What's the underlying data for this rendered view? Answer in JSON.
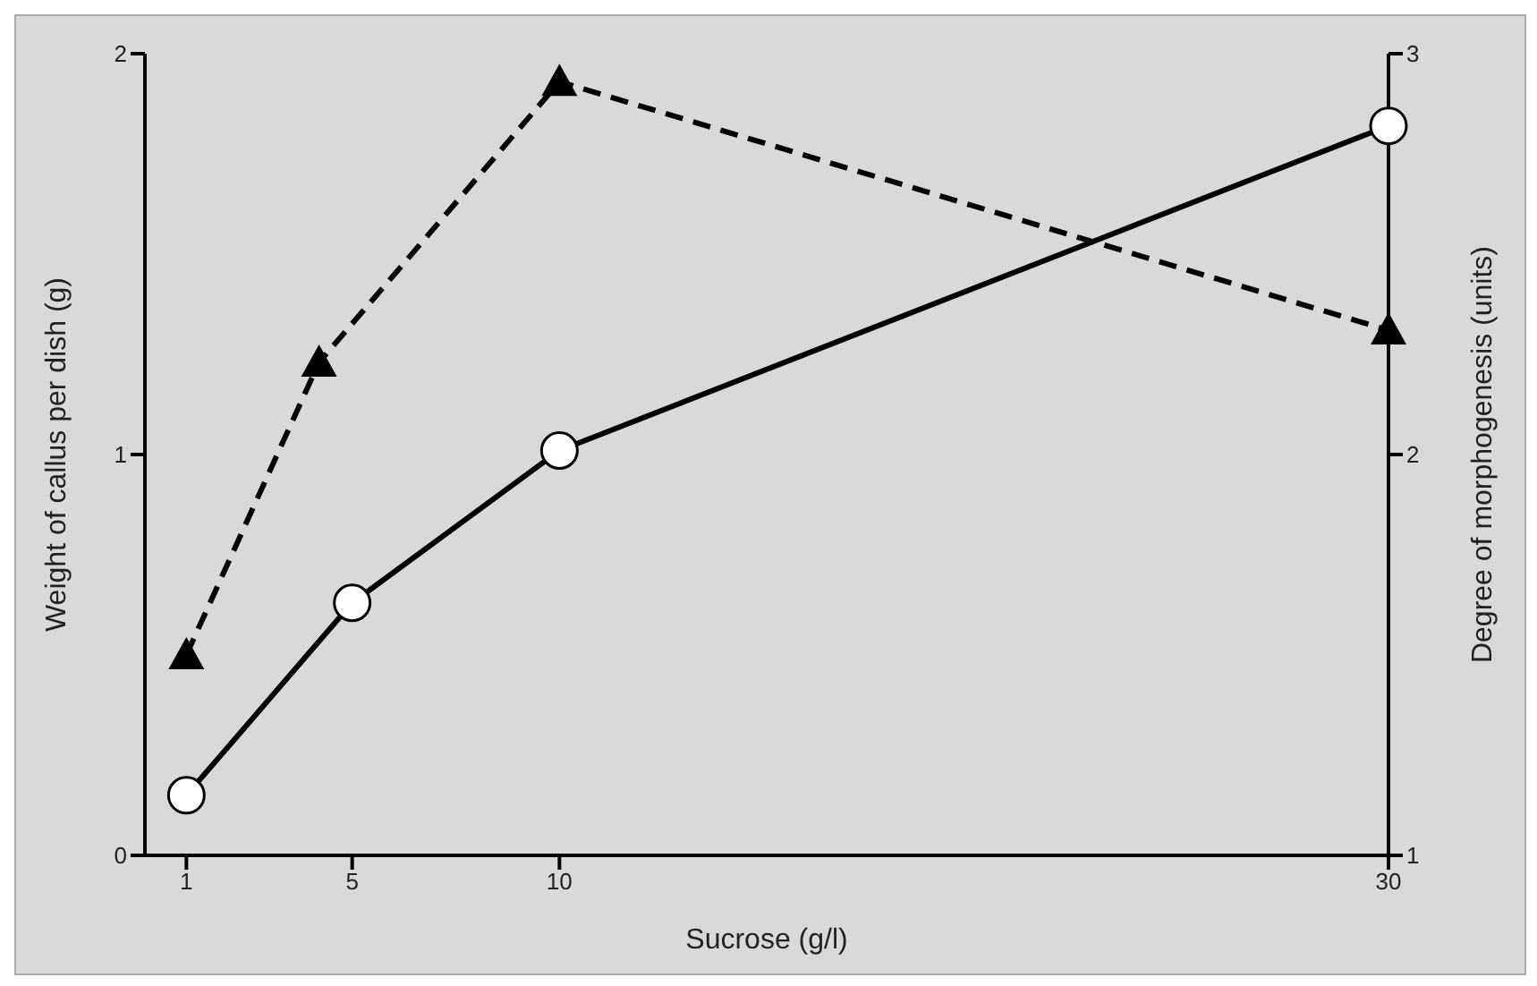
{
  "chart_data": {
    "type": "line",
    "xlabel": "Sucrose  (g/l)",
    "ylabel": "Weight  of  callus  per  dish  (g)",
    "y2label": "Degree  of  morphogenesis  (units)",
    "xlim": [
      0,
      30
    ],
    "xticks": [
      1,
      5,
      10,
      30
    ],
    "ylim": [
      0,
      2
    ],
    "yticks": [
      0,
      1,
      2
    ],
    "y2lim": [
      1,
      3
    ],
    "y2ticks": [
      1,
      2,
      3
    ],
    "series": [
      {
        "color": "#000000",
        "x": [
          1,
          5,
          10,
          30
        ],
        "values": [
          0.15,
          0.63,
          1.01,
          1.82
        ],
        "marker": "circle",
        "line_style": "solid"
      },
      {
        "color": "#000000",
        "x": [
          1,
          4.2,
          10,
          30
        ],
        "values": [
          1.5,
          2.23,
          2.93,
          2.31
        ],
        "marker": "triangle",
        "line_style": "dashed",
        "axis": "y2"
      }
    ]
  }
}
